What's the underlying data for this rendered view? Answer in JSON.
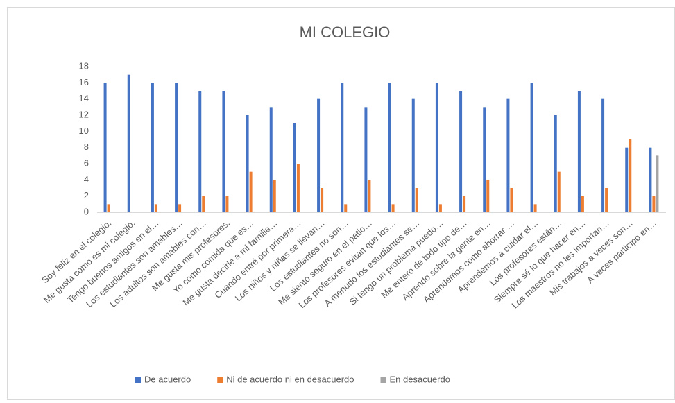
{
  "chart_data": {
    "type": "bar",
    "title": "MI COLEGIO",
    "categories": [
      "Soy feliz en el colegio.",
      "Me gusta como es mi colegio.",
      "Tengo buenos amigos en el…",
      "Los estudiantes son amables…",
      "Los adultos son amables con…",
      "Me gusta mis profesores.",
      "Yo como comida que es…",
      "Me gusta decirle a mi familia…",
      "Cuando entré por primera…",
      "Los niños y niñas se llevan…",
      "Los estudiantes no son…",
      "Me siento seguro en el patio…",
      "Los profesores evitan que los…",
      "A menudo los estudiantes se…",
      "Si tengo un problema puedo…",
      "Me entero de todo tipo de…",
      "Aprendo sobre la gente en…",
      "Aprendemos cómo ahorrar …",
      "Aprendemos a cuidar el…",
      "Los profesores están…",
      "Siempre sé lo que hacer en…",
      "Los maestros no les importan…",
      "Mis trabajos a veces son…",
      "A veces participo en…"
    ],
    "series": [
      {
        "name": "De acuerdo",
        "color": "#4472c4",
        "values": [
          16,
          17,
          16,
          16,
          15,
          15,
          12,
          13,
          11,
          14,
          16,
          13,
          16,
          14,
          16,
          15,
          13,
          14,
          16,
          12,
          15,
          14,
          8,
          8
        ]
      },
      {
        "name": "Ni de acuerdo ni en desacuerdo",
        "color": "#ed7d31",
        "values": [
          1,
          0,
          1,
          1,
          2,
          2,
          5,
          4,
          6,
          3,
          1,
          4,
          1,
          3,
          1,
          2,
          4,
          3,
          1,
          5,
          2,
          3,
          9,
          2
        ]
      },
      {
        "name": "En desacuerdo",
        "color": "#a5a5a5",
        "values": [
          0,
          0,
          0,
          0,
          0,
          0,
          0,
          0,
          0,
          0,
          0,
          0,
          0,
          0,
          0,
          0,
          0,
          0,
          0,
          0,
          0,
          0,
          0,
          7
        ]
      }
    ],
    "ylim": [
      0,
      18
    ],
    "yticks": [
      0,
      2,
      4,
      6,
      8,
      10,
      12,
      14,
      16,
      18
    ],
    "grid": false,
    "legend": "bottom"
  }
}
